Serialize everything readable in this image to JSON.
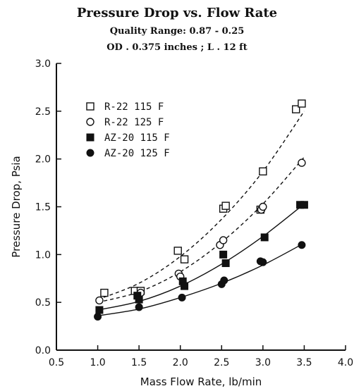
{
  "chart_data": {
    "type": "scatter",
    "title": "Pressure Drop vs. Flow Rate",
    "subtitle_1": "Quality Range: 0.87 - 0.25",
    "subtitle_2": "OD . 0.375 inches ; L . 12 ft",
    "xlabel": "Mass Flow Rate, lb/min",
    "ylabel": "Pressure Drop, Psia",
    "xlim": [
      0.5,
      4.0
    ],
    "ylim": [
      0.0,
      3.0
    ],
    "xticks": [
      "0.5",
      "1.0",
      "1.5",
      "2.0",
      "2.5",
      "3.0",
      "3.5",
      "4.0"
    ],
    "yticks": [
      "0.0",
      "0.5",
      "1.0",
      "1.5",
      "2.0",
      "2.5",
      "3.0"
    ],
    "legend_position": "top-left",
    "series": [
      {
        "name": "R-22 115 F",
        "marker": "open-square",
        "line": "dashed",
        "x": [
          1.08,
          1.45,
          1.52,
          1.97,
          2.05,
          2.52,
          2.55,
          2.97,
          3.0,
          3.4,
          3.47
        ],
        "y": [
          0.6,
          0.62,
          0.62,
          1.04,
          0.95,
          1.48,
          1.51,
          1.47,
          1.87,
          2.52,
          2.58
        ],
        "fit": [
          0.53,
          0.7,
          0.98,
          1.37,
          1.87,
          2.5
        ]
      },
      {
        "name": "R-22 125 F",
        "marker": "open-circle",
        "line": "dashed",
        "x": [
          1.02,
          1.52,
          1.98,
          2.0,
          2.48,
          2.52,
          2.98,
          3.0,
          3.47
        ],
        "y": [
          0.52,
          0.6,
          0.8,
          0.77,
          1.1,
          1.15,
          1.47,
          1.5,
          1.96
        ],
        "fit": [
          0.5,
          0.61,
          0.82,
          1.13,
          1.53,
          2.02
        ]
      },
      {
        "name": "AZ-20 115 F",
        "marker": "filled-square",
        "line": "solid",
        "x": [
          1.02,
          1.48,
          1.5,
          2.03,
          2.05,
          2.52,
          2.55,
          3.02,
          3.45,
          3.5
        ],
        "y": [
          0.42,
          0.57,
          0.53,
          0.72,
          0.67,
          1.0,
          0.91,
          1.18,
          1.52,
          1.52
        ],
        "fit": [
          0.42,
          0.51,
          0.67,
          0.9,
          1.19,
          1.53
        ]
      },
      {
        "name": "AZ-20 125 F",
        "marker": "filled-circle",
        "line": "solid",
        "x": [
          1.0,
          1.5,
          2.02,
          2.5,
          2.53,
          2.97,
          3.0,
          3.47
        ],
        "y": [
          0.35,
          0.45,
          0.55,
          0.69,
          0.73,
          0.93,
          0.92,
          1.1
        ],
        "fit": [
          0.36,
          0.43,
          0.55,
          0.7,
          0.89,
          1.12
        ]
      }
    ]
  }
}
